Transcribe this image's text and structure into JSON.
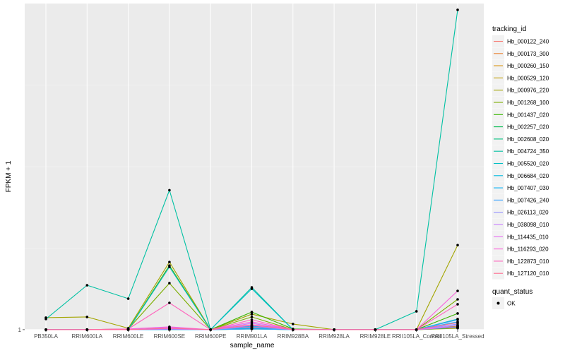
{
  "chart_data": {
    "type": "line",
    "xlabel": "sample_name",
    "ylabel": "FPKM + 1",
    "y_tick_labels": [
      "1"
    ],
    "ylim": [
      0.99,
      47.3
    ],
    "categories": [
      "PB350LA",
      "RRIM600LA",
      "RRIM600LE",
      "RRIM600SE",
      "RRIM600PE",
      "RRIM901LA",
      "RRIM928BA",
      "RRIM928LA",
      "RRIM928LE",
      "RRII105LA_Control",
      "RRII105LA_Stressed"
    ],
    "legend": {
      "title": "tracking_id",
      "placement": "right",
      "status_title": "quant_status",
      "status_label": "OK"
    },
    "series": [
      {
        "name": "Hb_000122_240",
        "color": "#F8766D",
        "values": [
          1,
          1,
          1,
          1.1,
          1,
          1.4,
          1,
          1,
          1,
          1,
          1.3
        ]
      },
      {
        "name": "Hb_000173_300",
        "color": "#EA8331",
        "values": [
          1,
          1,
          1,
          1.05,
          1,
          1.3,
          1,
          1,
          1,
          1,
          1.25
        ]
      },
      {
        "name": "Hb_000260_150",
        "color": "#D89000",
        "values": [
          1,
          1,
          1,
          1.02,
          1,
          1.2,
          1,
          1,
          1,
          1,
          1.5
        ]
      },
      {
        "name": "Hb_000529_120",
        "color": "#C09B00",
        "values": [
          1,
          1,
          1,
          1.02,
          1,
          1.1,
          1,
          1,
          1,
          1,
          1.2
        ]
      },
      {
        "name": "Hb_000976_220",
        "color": "#A3A500",
        "values": [
          2.7,
          2.8,
          1.2,
          10.6,
          1,
          3.2,
          1.8,
          1,
          1,
          1,
          13.0
        ]
      },
      {
        "name": "Hb_001268_100",
        "color": "#7CAE00",
        "values": [
          1,
          1,
          1.1,
          7.6,
          1,
          2.8,
          1,
          1,
          1,
          1,
          5.3
        ]
      },
      {
        "name": "Hb_001437_020",
        "color": "#39B600",
        "values": [
          1,
          1,
          1.05,
          10.1,
          1,
          3.5,
          1.1,
          1,
          1,
          1,
          3.3
        ]
      },
      {
        "name": "Hb_002257_020",
        "color": "#00BB4E",
        "values": [
          1,
          1,
          1,
          1.05,
          1,
          1.5,
          1,
          1,
          1,
          1,
          1.4
        ]
      },
      {
        "name": "Hb_002608_020",
        "color": "#00BF7D",
        "values": [
          1,
          1,
          1,
          1.02,
          1,
          1.1,
          1,
          1,
          1,
          1,
          1.3
        ]
      },
      {
        "name": "Hb_004724_350",
        "color": "#00C1A3",
        "values": [
          2.5,
          7.3,
          5.4,
          20.8,
          1,
          7.0,
          1,
          1,
          1,
          3.6,
          46.4
        ]
      },
      {
        "name": "Hb_005520_020",
        "color": "#00BFC4",
        "values": [
          1,
          1,
          1,
          9.9,
          1,
          6.8,
          1,
          1,
          1,
          1,
          2.5
        ]
      },
      {
        "name": "Hb_006684_020",
        "color": "#00BAE0",
        "values": [
          1,
          1,
          1,
          1.05,
          1,
          1.5,
          1,
          1,
          1,
          1,
          1.6
        ]
      },
      {
        "name": "Hb_007407_030",
        "color": "#00B0F6",
        "values": [
          1,
          1,
          1,
          1.02,
          1,
          1.2,
          1,
          1,
          1,
          1,
          2.1
        ]
      },
      {
        "name": "Hb_007426_240",
        "color": "#35A2FF",
        "values": [
          1,
          1,
          1,
          1.05,
          1,
          1.1,
          1,
          1,
          1,
          1,
          2.4
        ]
      },
      {
        "name": "Hb_026113_020",
        "color": "#9590FF",
        "values": [
          1,
          1,
          1,
          1.2,
          1,
          1.4,
          1,
          1,
          1,
          1,
          1.8
        ]
      },
      {
        "name": "Hb_038098_010",
        "color": "#C77CFF",
        "values": [
          1,
          1,
          1,
          1.3,
          1,
          1.9,
          1,
          1,
          1,
          1,
          1.6
        ]
      },
      {
        "name": "Hb_114435_010",
        "color": "#E76BF3",
        "values": [
          1,
          1,
          1,
          1.1,
          1,
          1.6,
          1,
          1,
          1,
          1,
          1.4
        ]
      },
      {
        "name": "Hb_116293_020",
        "color": "#FA62DB",
        "values": [
          1,
          1,
          1.1,
          1.4,
          1,
          2.1,
          1,
          1,
          1,
          1,
          6.5
        ]
      },
      {
        "name": "Hb_122873_010",
        "color": "#FF62BC",
        "values": [
          1,
          1,
          1.1,
          4.8,
          1,
          2.4,
          1,
          1,
          1,
          1,
          4.6
        ]
      },
      {
        "name": "Hb_127120_010",
        "color": "#FF6C91",
        "values": [
          1,
          1,
          1,
          1.2,
          1,
          1.7,
          1,
          1,
          1,
          1,
          2.0
        ]
      }
    ]
  }
}
